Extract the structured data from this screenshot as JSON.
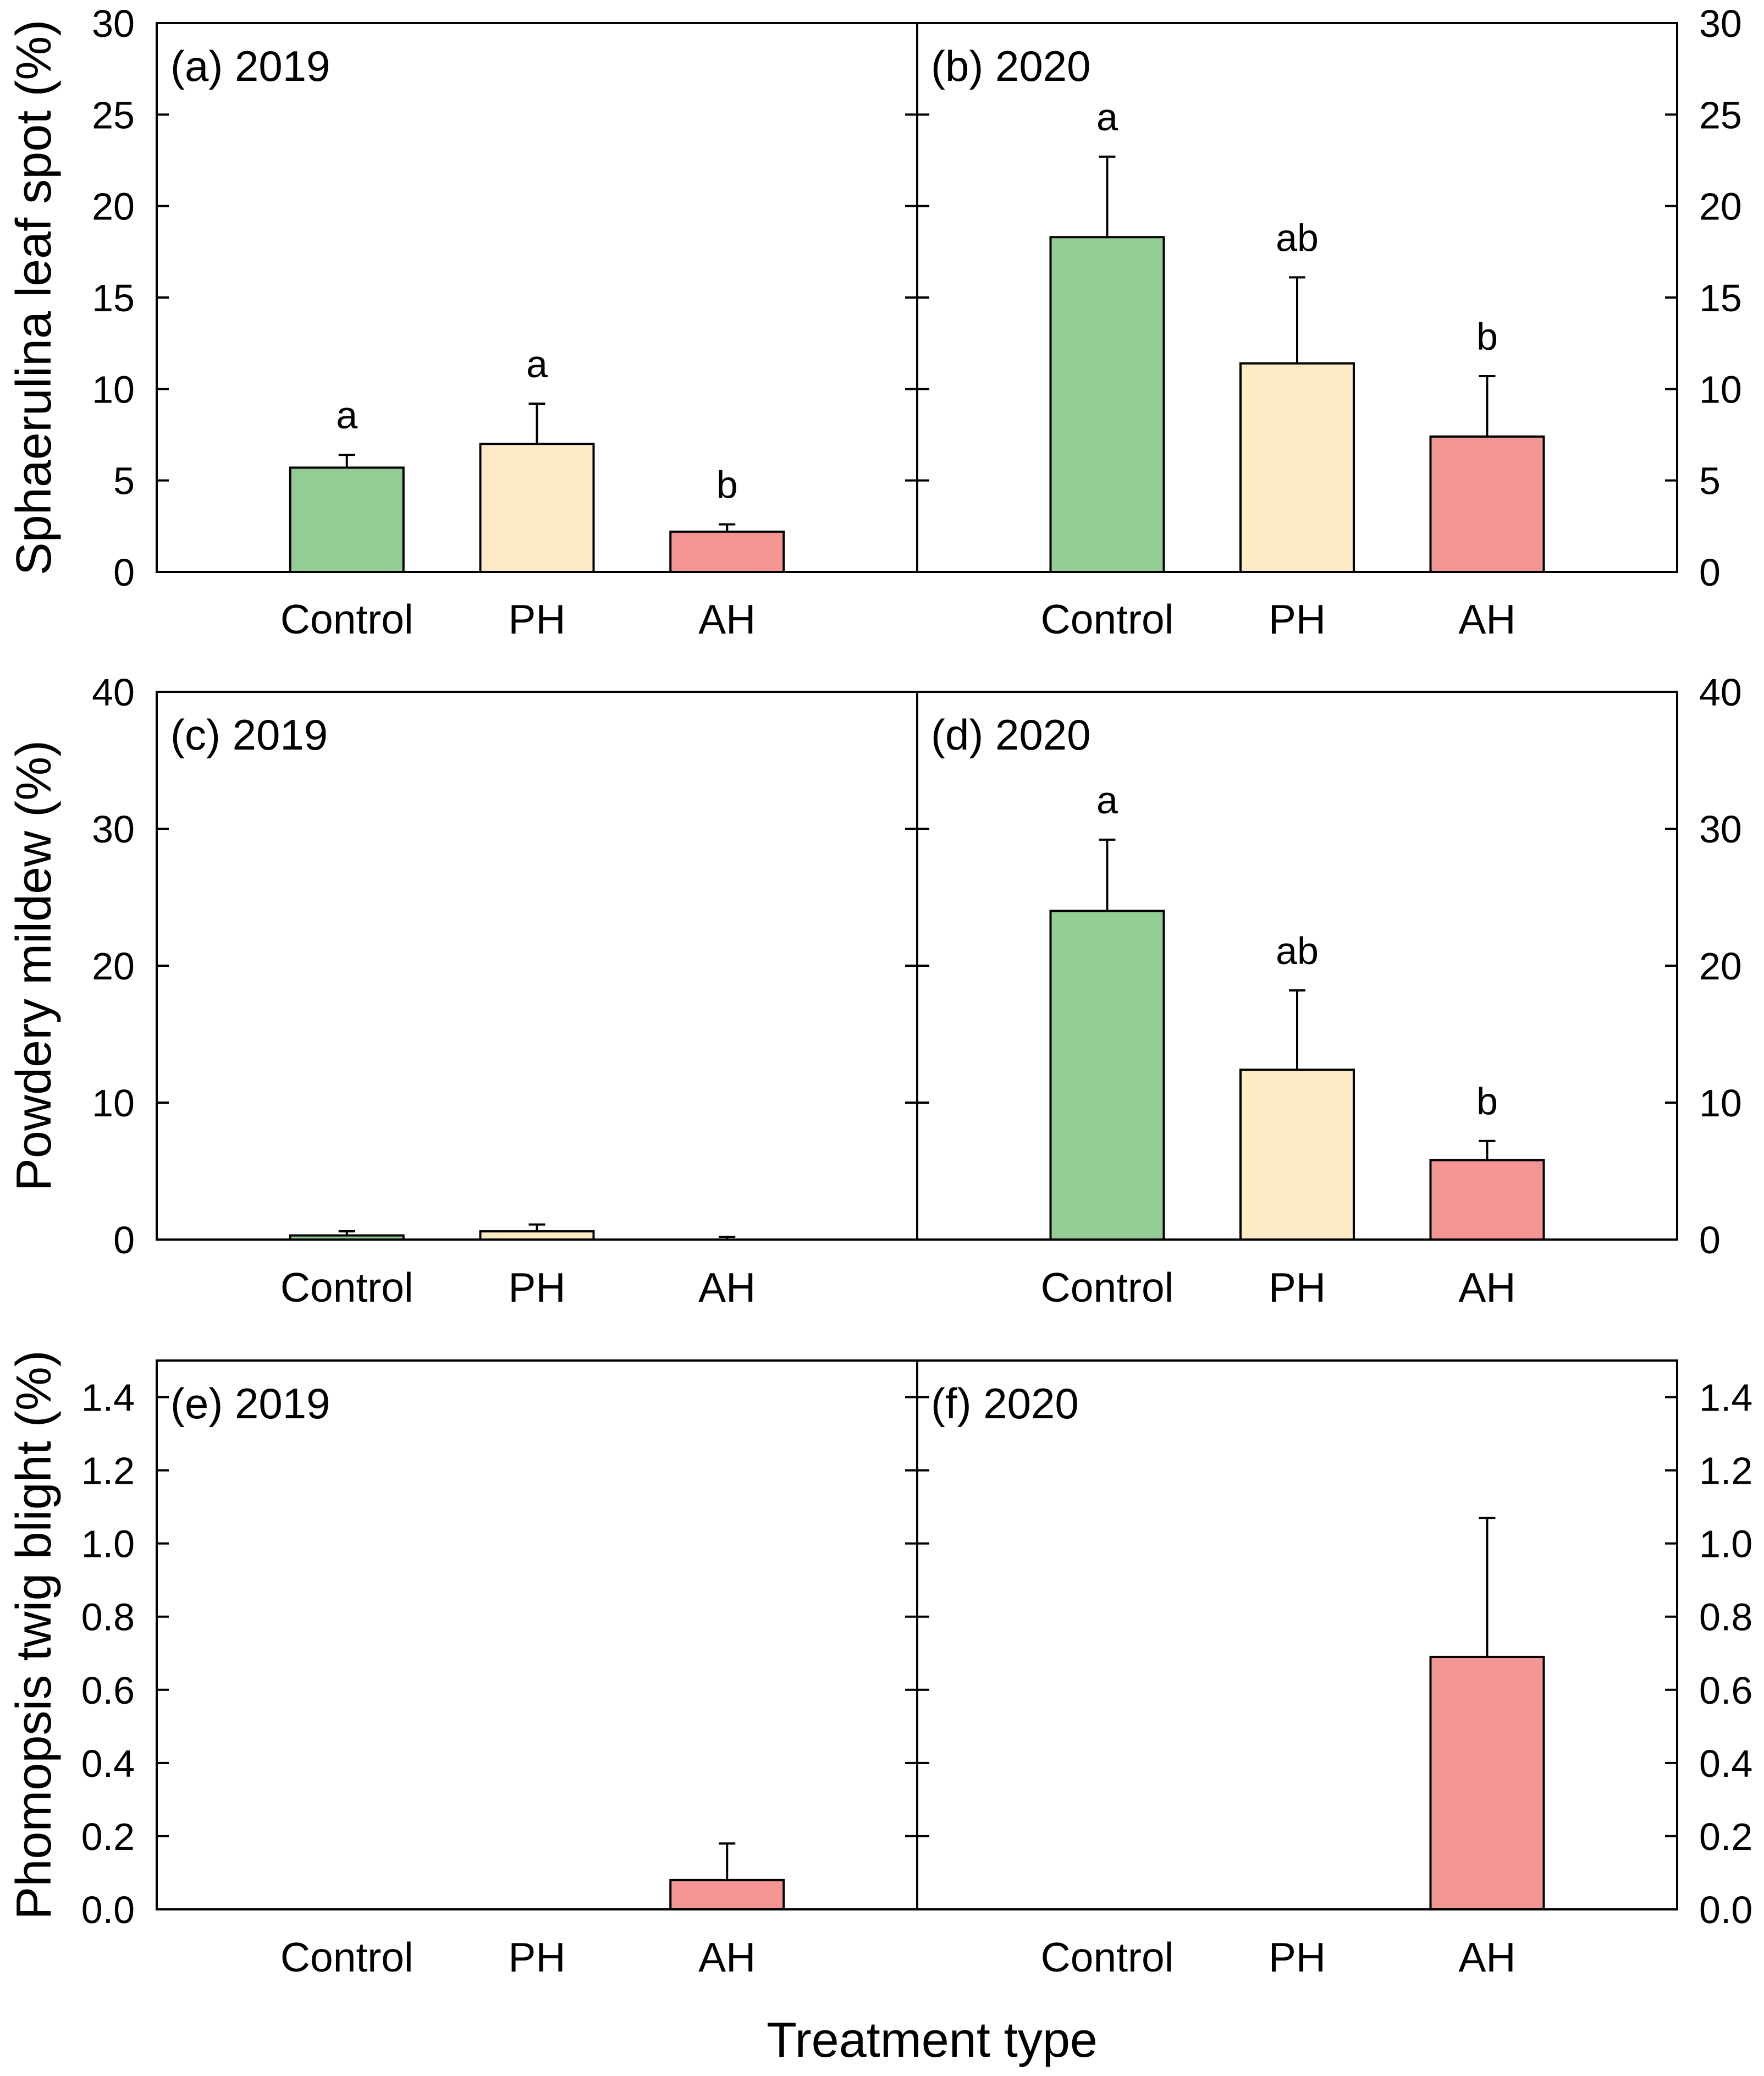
{
  "chart_data": {
    "type": "bar",
    "categories": [
      "Control",
      "PH",
      "AH"
    ],
    "xlabel": "Treatment type",
    "colors": {
      "Control": "#93cd93",
      "PH": "#fcebc4",
      "AH": "#f39593"
    },
    "rows": [
      {
        "ylabel": "Sphaerulina leaf spot (%)",
        "ylim": [
          0,
          30
        ],
        "ticks": [
          "0",
          "5",
          "10",
          "15",
          "20",
          "25",
          "30"
        ],
        "tick_values": [
          0,
          5,
          10,
          15,
          20,
          25,
          30
        ],
        "panels": [
          {
            "label": "(a) 2019",
            "values": [
              5.7,
              7.0,
              2.2
            ],
            "errors": [
              0.7,
              2.2,
              0.4
            ],
            "letters": [
              "a",
              "a",
              "b"
            ]
          },
          {
            "label": "(b) 2020",
            "values": [
              18.3,
              11.4,
              7.4
            ],
            "errors": [
              4.4,
              4.7,
              3.3
            ],
            "letters": [
              "a",
              "ab",
              "b"
            ]
          }
        ]
      },
      {
        "ylabel": "Powdery mildew (%)",
        "ylim": [
          0,
          40
        ],
        "ticks": [
          "0",
          "10",
          "20",
          "30",
          "40"
        ],
        "tick_values": [
          0,
          10,
          20,
          30,
          40
        ],
        "panels": [
          {
            "label": "(c) 2019",
            "values": [
              0.3,
              0.6,
              0.0
            ],
            "errors": [
              0.3,
              0.5,
              0.2
            ],
            "letters": [
              "",
              "",
              ""
            ]
          },
          {
            "label": "(d) 2020",
            "values": [
              24.0,
              12.4,
              5.8
            ],
            "errors": [
              5.2,
              5.8,
              1.4
            ],
            "letters": [
              "a",
              "ab",
              "b"
            ]
          }
        ]
      },
      {
        "ylabel": "Phomopsis twig blight (%)",
        "ylim": [
          0,
          1.5
        ],
        "ticks": [
          "0.0",
          "0.2",
          "0.4",
          "0.6",
          "0.8",
          "1.0",
          "1.2",
          "1.4"
        ],
        "tick_values": [
          0,
          0.2,
          0.4,
          0.6,
          0.8,
          1.0,
          1.2,
          1.4
        ],
        "panels": [
          {
            "label": "(e) 2019",
            "values": [
              0,
              0,
              0.08
            ],
            "errors": [
              0,
              0,
              0.1
            ],
            "letters": [
              "",
              "",
              ""
            ]
          },
          {
            "label": "(f) 2020",
            "values": [
              0,
              0,
              0.69
            ],
            "errors": [
              0,
              0,
              0.38
            ],
            "letters": [
              "",
              "",
              ""
            ]
          }
        ]
      }
    ]
  }
}
